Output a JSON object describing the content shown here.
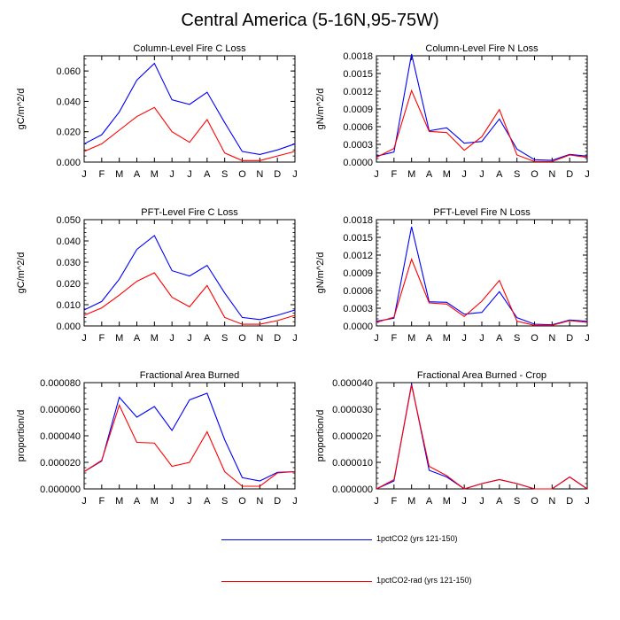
{
  "title": "Central America (5-16N,95-75W)",
  "colors": {
    "series1": "#0000ff",
    "series2": "#ff0000",
    "axis": "#000000"
  },
  "legend": [
    {
      "label": "1pctCO2 (yrs 121-150)",
      "color": "#0000ff"
    },
    {
      "label": "1pctCO2-rad (yrs 121-150)",
      "color": "#ff0000"
    }
  ],
  "chart_data": [
    {
      "type": "line",
      "title": "Column-Level Fire C Loss",
      "ylabel": "gC/m^2/d",
      "categories": [
        "J",
        "F",
        "M",
        "A",
        "M",
        "J",
        "J",
        "A",
        "S",
        "O",
        "N",
        "D",
        "J"
      ],
      "ylim": [
        0,
        0.07
      ],
      "yticks": [
        "0.000",
        "0.020",
        "0.040",
        "0.060"
      ],
      "ytick_values": [
        0,
        0.02,
        0.04,
        0.06
      ],
      "series": [
        {
          "name": "1pctCO2 (yrs 121-150)",
          "color": "#0000ff",
          "values": [
            0.012,
            0.018,
            0.033,
            0.054,
            0.065,
            0.041,
            0.038,
            0.046,
            0.026,
            0.007,
            0.005,
            0.008,
            0.012
          ]
        },
        {
          "name": "1pctCO2-rad (yrs 121-150)",
          "color": "#ff0000",
          "values": [
            0.007,
            0.012,
            0.021,
            0.03,
            0.036,
            0.02,
            0.013,
            0.028,
            0.006,
            0.001,
            0.001,
            0.004,
            0.007
          ]
        }
      ]
    },
    {
      "type": "line",
      "title": "Column-Level Fire N Loss",
      "ylabel": "gN/m^2/d",
      "categories": [
        "J",
        "F",
        "M",
        "A",
        "M",
        "J",
        "J",
        "A",
        "S",
        "O",
        "N",
        "D",
        "J"
      ],
      "ylim": [
        0,
        0.0018
      ],
      "yticks": [
        "0.0000",
        "0.0003",
        "0.0006",
        "0.0009",
        "0.0012",
        "0.0015",
        "0.0018"
      ],
      "ytick_values": [
        0,
        0.0003,
        0.0006,
        0.0009,
        0.0012,
        0.0015,
        0.0018
      ],
      "series": [
        {
          "name": "1pctCO2 (yrs 121-150)",
          "color": "#0000ff",
          "values": [
            0.0001,
            0.00017,
            0.00183,
            0.00053,
            0.00058,
            0.00032,
            0.00035,
            0.00073,
            0.00022,
            4e-05,
            3e-05,
            0.00013,
            0.0001
          ]
        },
        {
          "name": "1pctCO2-rad (yrs 121-150)",
          "color": "#ff0000",
          "values": [
            8e-05,
            0.00023,
            0.00121,
            0.00052,
            0.0005,
            0.0002,
            0.00043,
            0.00089,
            0.00012,
            1e-05,
            1e-05,
            0.00012,
            8e-05
          ]
        }
      ]
    },
    {
      "type": "line",
      "title": "PFT-Level Fire C Loss",
      "ylabel": "gC/m^2/d",
      "categories": [
        "J",
        "F",
        "M",
        "A",
        "M",
        "J",
        "J",
        "A",
        "S",
        "O",
        "N",
        "D",
        "J"
      ],
      "ylim": [
        0,
        0.05
      ],
      "yticks": [
        "0.000",
        "0.010",
        "0.020",
        "0.030",
        "0.040",
        "0.050"
      ],
      "ytick_values": [
        0,
        0.01,
        0.02,
        0.03,
        0.04,
        0.05
      ],
      "series": [
        {
          "name": "1pctCO2 (yrs 121-150)",
          "color": "#0000ff",
          "values": [
            0.0075,
            0.0115,
            0.022,
            0.036,
            0.0425,
            0.026,
            0.0235,
            0.0285,
            0.0155,
            0.004,
            0.003,
            0.005,
            0.0075
          ]
        },
        {
          "name": "1pctCO2-rad (yrs 121-150)",
          "color": "#ff0000",
          "values": [
            0.005,
            0.0085,
            0.0145,
            0.021,
            0.025,
            0.0135,
            0.009,
            0.019,
            0.004,
            0.0008,
            0.0008,
            0.0025,
            0.005
          ]
        }
      ]
    },
    {
      "type": "line",
      "title": "PFT-Level Fire N Loss",
      "ylabel": "gN/m^2/d",
      "categories": [
        "J",
        "F",
        "M",
        "A",
        "M",
        "J",
        "J",
        "A",
        "S",
        "O",
        "N",
        "D",
        "J"
      ],
      "ylim": [
        0,
        0.0018
      ],
      "yticks": [
        "0.0000",
        "0.0003",
        "0.0006",
        "0.0009",
        "0.0012",
        "0.0015",
        "0.0018"
      ],
      "ytick_values": [
        0,
        0.0003,
        0.0006,
        0.0009,
        0.0012,
        0.0015,
        0.0018
      ],
      "series": [
        {
          "name": "1pctCO2 (yrs 121-150)",
          "color": "#0000ff",
          "values": [
            8e-05,
            0.00013,
            0.00168,
            0.00041,
            0.0004,
            0.0002,
            0.00023,
            0.00058,
            0.00014,
            3e-05,
            2e-05,
            0.0001,
            8e-05
          ]
        },
        {
          "name": "1pctCO2-rad (yrs 121-150)",
          "color": "#ff0000",
          "values": [
            6e-05,
            0.00015,
            0.00113,
            0.00039,
            0.00037,
            0.00016,
            0.00042,
            0.00077,
            8e-05,
            1e-05,
            1e-05,
            9e-05,
            6e-05
          ]
        }
      ]
    },
    {
      "type": "line",
      "title": "Fractional Area Burned",
      "ylabel": "proportion/d",
      "categories": [
        "J",
        "F",
        "M",
        "A",
        "M",
        "J",
        "J",
        "A",
        "S",
        "O",
        "N",
        "D",
        "J"
      ],
      "ylim": [
        0,
        8e-05
      ],
      "yticks": [
        "0.000000",
        "0.000020",
        "0.000040",
        "0.000060",
        "0.000080"
      ],
      "ytick_values": [
        0,
        2e-05,
        4e-05,
        6e-05,
        8e-05
      ],
      "series": [
        {
          "name": "1pctCO2 (yrs 121-150)",
          "color": "#0000ff",
          "values": [
            1.3e-05,
            2.1e-05,
            6.9e-05,
            5.4e-05,
            6.2e-05,
            4.4e-05,
            6.7e-05,
            7.2e-05,
            3.7e-05,
            8.5e-06,
            6e-06,
            1.25e-05,
            1.3e-05
          ]
        },
        {
          "name": "1pctCO2-rad (yrs 121-150)",
          "color": "#ff0000",
          "values": [
            1.3e-05,
            2.15e-05,
            6.3e-05,
            3.5e-05,
            3.45e-05,
            1.7e-05,
            2e-05,
            4.3e-05,
            1.3e-05,
            2e-06,
            2e-06,
            1.2e-05,
            1.3e-05
          ]
        }
      ]
    },
    {
      "type": "line",
      "title": "Fractional Area Burned - Crop",
      "ylabel": "proportion/d",
      "categories": [
        "J",
        "F",
        "M",
        "A",
        "M",
        "J",
        "J",
        "A",
        "S",
        "O",
        "N",
        "D",
        "J"
      ],
      "ylim": [
        0,
        4e-05
      ],
      "yticks": [
        "0.000000",
        "0.000010",
        "0.000020",
        "0.000030",
        "0.000040"
      ],
      "ytick_values": [
        0,
        1e-05,
        2e-05,
        3e-05,
        4e-05
      ],
      "series": [
        {
          "name": "1pctCO2 (yrs 121-150)",
          "color": "#0000ff",
          "values": [
            0.0,
            3e-06,
            3.95e-05,
            7e-06,
            4.5e-06,
            0.0,
            2e-06,
            3.5e-06,
            2e-06,
            0.0,
            0.0,
            4.5e-06,
            0.0
          ]
        },
        {
          "name": "1pctCO2-rad (yrs 121-150)",
          "color": "#ff0000",
          "values": [
            0.0,
            3.5e-06,
            3.9e-05,
            8.5e-06,
            5e-06,
            0.0,
            2e-06,
            3.5e-06,
            2e-06,
            0.0,
            0.0,
            4.5e-06,
            0.0
          ]
        }
      ]
    }
  ]
}
